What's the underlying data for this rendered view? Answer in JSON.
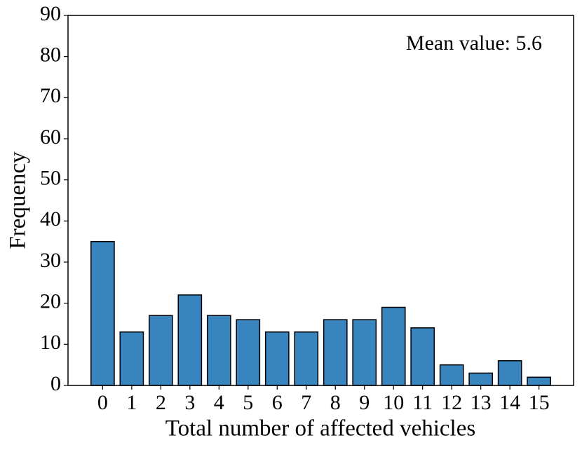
{
  "chart_data": {
    "type": "bar",
    "xlabel": "Total number of affected vehicles",
    "ylabel": "Frequency",
    "annotation": "Mean value: 5.6",
    "x": [
      0,
      1,
      2,
      3,
      4,
      5,
      6,
      7,
      8,
      9,
      10,
      11,
      12,
      13,
      14,
      15
    ],
    "values": [
      35,
      13,
      17,
      22,
      17,
      16,
      13,
      13,
      16,
      16,
      19,
      14,
      5,
      3,
      6,
      2
    ],
    "color": "#3784bf",
    "edgecolor": "#000000",
    "xlim": [
      -1.19,
      16.19
    ],
    "xticks": [
      0,
      1,
      2,
      3,
      4,
      5,
      6,
      7,
      8,
      9,
      10,
      11,
      12,
      13,
      14,
      15
    ],
    "ylim": [
      0,
      90
    ],
    "yticks": [
      0,
      10,
      20,
      30,
      40,
      50,
      60,
      70,
      80,
      90
    ],
    "grid": false
  }
}
